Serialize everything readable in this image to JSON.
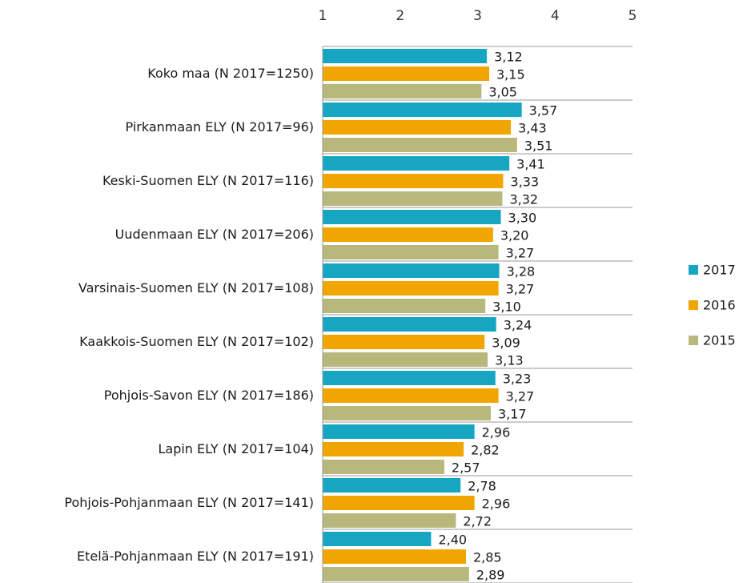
{
  "chart_data": {
    "type": "hbar_grouped",
    "categories": [
      "Koko maa (N 2017=1250)",
      "Pirkanmaan ELY (N 2017=96)",
      "Keski-Suomen ELY (N 2017=116)",
      "Uudenmaan ELY (N 2017=206)",
      "Varsinais-Suomen ELY (N 2017=108)",
      "Kaakkois-Suomen ELY (N 2017=102)",
      "Pohjois-Savon ELY (N 2017=186)",
      "Lapin ELY (N 2017=104)",
      "Pohjois-Pohjanmaan ELY (N 2017=141)",
      "Etelä-Pohjanmaan ELY (N 2017=191)"
    ],
    "series": [
      {
        "name": "2017",
        "color": "#17a6c2",
        "values": [
          3.12,
          3.57,
          3.41,
          3.3,
          3.28,
          3.24,
          3.23,
          2.96,
          2.78,
          2.4
        ],
        "value_labels": [
          "3,12",
          "3,57",
          "3,41",
          "3,30",
          "3,28",
          "3,24",
          "3,23",
          "2,96",
          "2,78",
          "2,40"
        ]
      },
      {
        "name": "2016",
        "color": "#f0a500",
        "values": [
          3.15,
          3.43,
          3.33,
          3.2,
          3.27,
          3.09,
          3.27,
          2.82,
          2.96,
          2.85
        ],
        "value_labels": [
          "3,15",
          "3,43",
          "3,33",
          "3,20",
          "3,27",
          "3,09",
          "3,27",
          "2,82",
          "2,96",
          "2,85"
        ]
      },
      {
        "name": "2015",
        "color": "#b9b87c",
        "values": [
          3.05,
          3.51,
          3.32,
          3.27,
          3.1,
          3.13,
          3.17,
          2.57,
          2.72,
          2.89
        ],
        "value_labels": [
          "3,05",
          "3,51",
          "3,32",
          "3,27",
          "3,10",
          "3,13",
          "3,17",
          "2,57",
          "2,72",
          "2,89"
        ]
      }
    ],
    "xlim": [
      1,
      5
    ],
    "xticks": [
      1,
      2,
      3,
      4,
      5
    ],
    "legend": "right"
  }
}
